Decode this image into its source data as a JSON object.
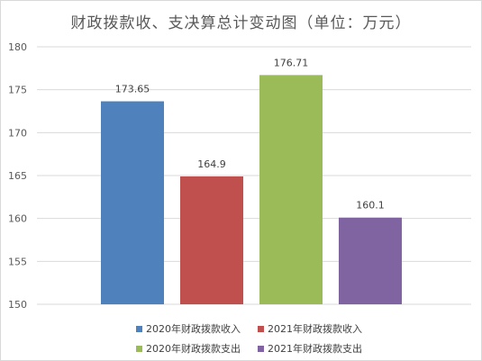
{
  "chart_data": {
    "type": "bar",
    "title": "财政拨款收、支决算总计变动图（单位：万元）",
    "xlabel": "",
    "ylabel": "",
    "ylim": [
      150,
      180
    ],
    "yticks": [
      150,
      155,
      160,
      165,
      170,
      175,
      180
    ],
    "grid": true,
    "legend_position": "bottom",
    "series": [
      {
        "name": "2020年财政拨款收入",
        "value": 173.65,
        "label": "173.65",
        "color": "#4f81bd"
      },
      {
        "name": "2021年财政拨款收入",
        "value": 164.9,
        "label": "164.9",
        "color": "#c0504d"
      },
      {
        "name": "2020年财政拨款支出",
        "value": 176.71,
        "label": "176.71",
        "color": "#9bbb59"
      },
      {
        "name": "2021年财政拨款支出",
        "value": 160.1,
        "label": "160.1",
        "color": "#8064a2"
      }
    ]
  }
}
